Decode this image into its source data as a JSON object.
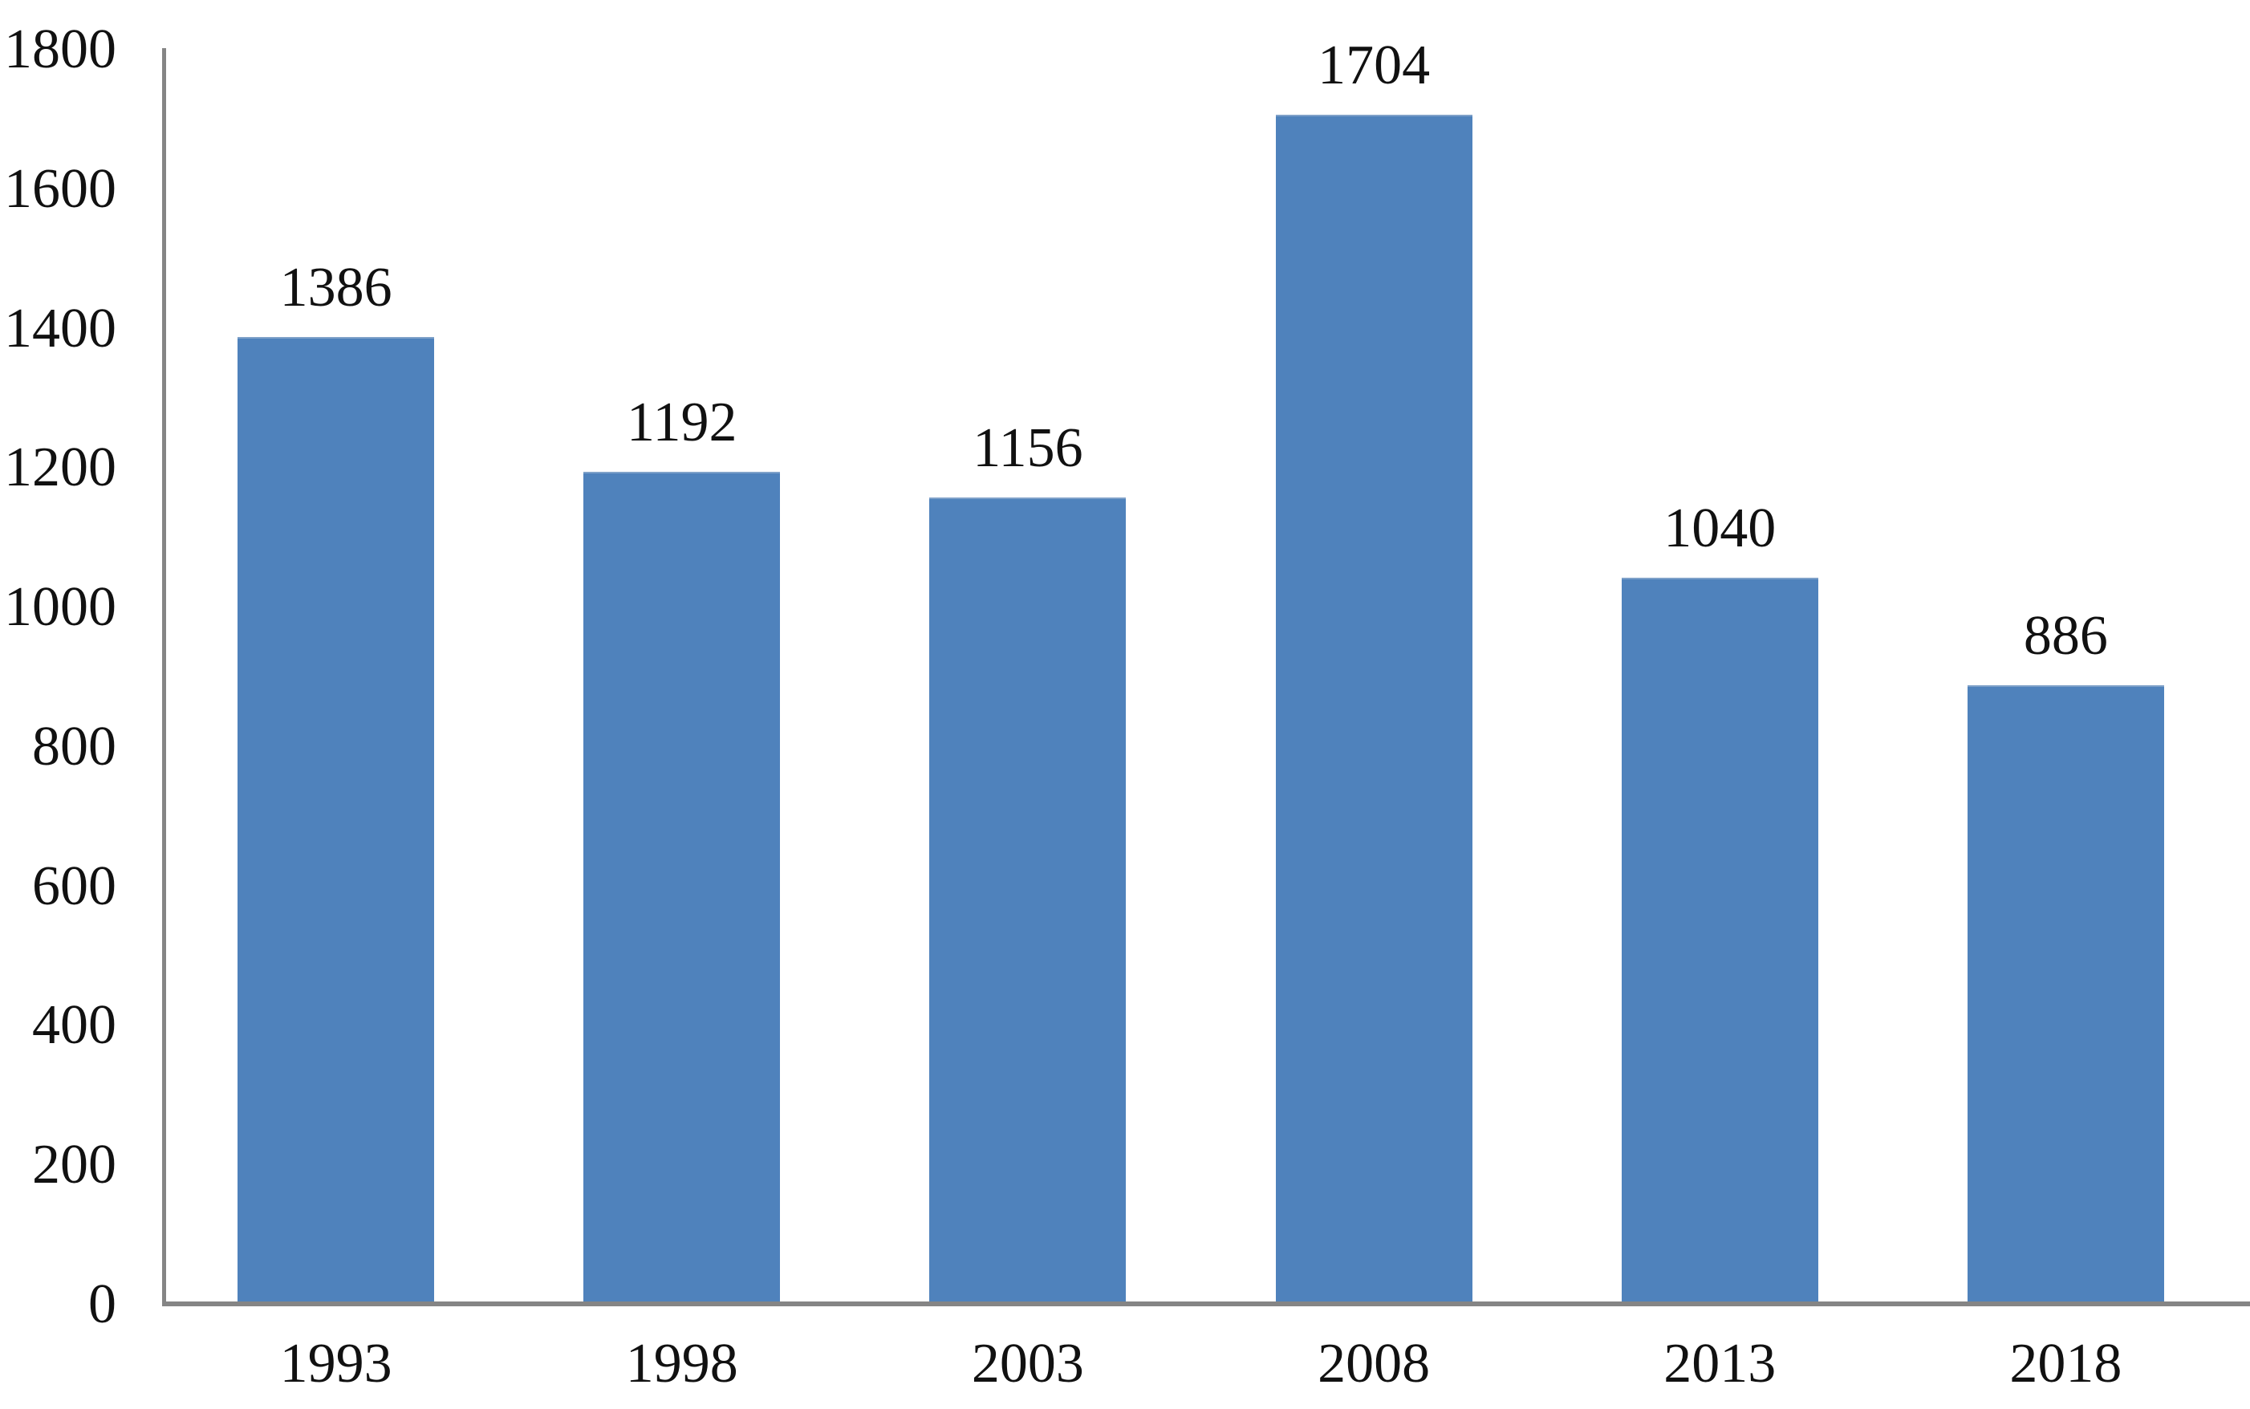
{
  "chart_data": {
    "type": "bar",
    "title": "",
    "xlabel": "",
    "ylabel": "",
    "categories": [
      "1993",
      "1998",
      "2003",
      "2008",
      "2013",
      "2018"
    ],
    "values": [
      1386,
      1192,
      1156,
      1704,
      1040,
      886
    ],
    "data_labels": [
      "1386",
      "1192",
      "1156",
      "1704",
      "1040",
      "886"
    ],
    "y_ticks": [
      "0",
      "200",
      "400",
      "600",
      "800",
      "1000",
      "1200",
      "1400",
      "1600",
      "1800"
    ],
    "ylim": [
      0,
      1800
    ],
    "grid": false,
    "legend": false,
    "bar_color": "#4F82BC",
    "bar_edge_highlight": "#7fa1c9",
    "axis_color": "#858585",
    "text_color": "#111111",
    "background_color": "#ffffff"
  }
}
